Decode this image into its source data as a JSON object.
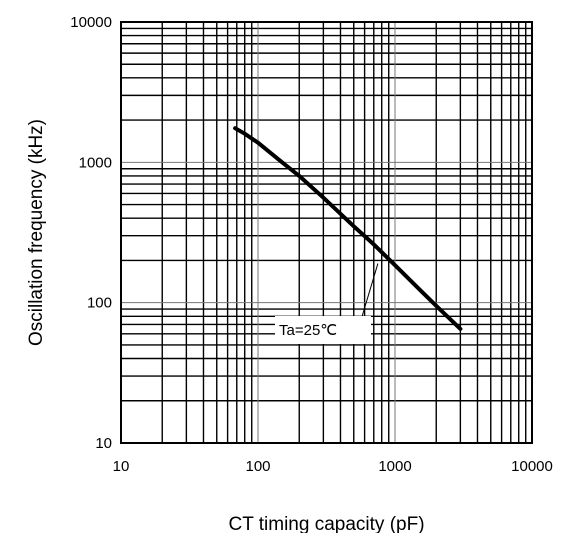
{
  "chart_data": {
    "type": "line",
    "xlabel": "CT timing capacity (pF)",
    "ylabel": "Oscillation frequency (kHz)",
    "x_scale": "log",
    "y_scale": "log",
    "xlim": [
      10,
      10000
    ],
    "ylim": [
      10,
      10000
    ],
    "grid": true,
    "x_ticks": [
      "10",
      "100",
      "1000",
      "10000"
    ],
    "y_ticks": [
      "10",
      "100",
      "1000",
      "10000"
    ],
    "series": [
      {
        "x": [
          68,
          80,
          100,
          150,
          200,
          300,
          500,
          700,
          1000,
          1500,
          2000,
          3000
        ],
        "y": [
          1750,
          1600,
          1380,
          1000,
          800,
          560,
          350,
          260,
          185,
          125,
          95,
          65
        ]
      }
    ],
    "annotations": [
      {
        "text": "Ta=25℃",
        "x": 750,
        "y": 190
      }
    ]
  },
  "colors": {
    "line": "#000000",
    "grid": "#000000",
    "background": "#ffffff"
  }
}
